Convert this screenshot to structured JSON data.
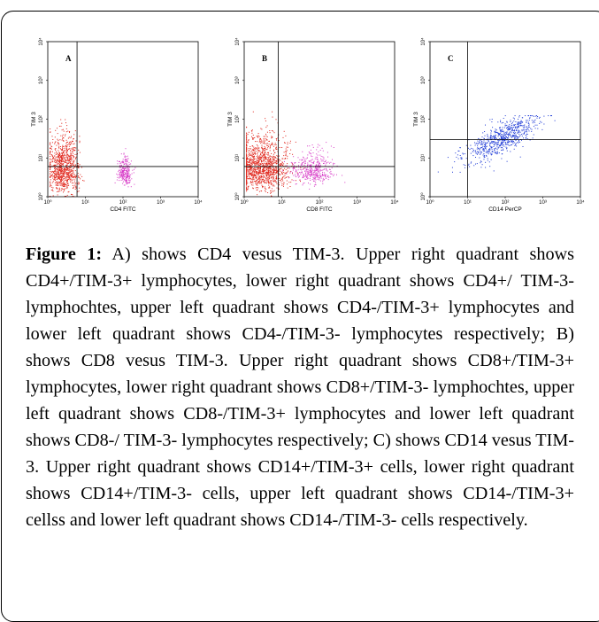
{
  "figure": {
    "caption_label": "Figure 1:",
    "caption_text": " A) shows CD4 vesus TIM-3. Upper right quadrant shows CD4+/TIM-3+ lymphocytes, lower right quadrant shows CD4+/ TIM-3- lymphochtes, upper left quadrant shows CD4-/TIM-3+ lymphocytes and lower left quadrant shows CD4-/TIM-3- lymphocytes respectively; B) shows CD8 vesus TIM-3. Upper right quadrant shows CD8+/TIM-3+ lymphocytes, lower right quadrant shows CD8+/TIM-3- lymphochtes, upper left quadrant shows CD8-/TIM-3+ lymphocytes and lower left quadrant shows CD8-/ TIM-3- lymphocytes respectively; C) shows CD14 vesus TIM-3. Upper right quadrant shows CD14+/TIM-3+ cells, lower right quadrant shows CD14+/TIM-3- cells, upper left quadrant shows CD14-/TIM-3+ cellss and lower left quadrant shows CD14-/TIM-3- cells respectively."
  },
  "chart_data": [
    {
      "type": "scatter",
      "panel_label": "A",
      "xlabel": "CD4 FITC",
      "ylabel": "TIM 3",
      "scale": "log",
      "xlim": [
        1,
        10000
      ],
      "ylim": [
        1,
        10000
      ],
      "x_ticks": [
        "10⁰",
        "10¹",
        "10²",
        "10³",
        "10⁴"
      ],
      "y_ticks": [
        "10⁰",
        "10¹",
        "10²",
        "10³",
        "10⁴"
      ],
      "quadrant_gate": {
        "x": 6,
        "y": 6
      },
      "populations": [
        {
          "color": "#e0261c",
          "count": 900,
          "log_x_mean": 0.4,
          "log_x_sd": 0.2,
          "log_y_mean": 0.5,
          "log_y_sd": 0.55,
          "log_y_range": [
            0,
            2.0
          ]
        },
        {
          "color": "#d83ec8",
          "count": 260,
          "log_x_mean": 2.05,
          "log_x_sd": 0.1,
          "log_y_mean": 0.5,
          "log_y_sd": 0.28,
          "log_y_range": [
            0,
            1.3
          ]
        }
      ]
    },
    {
      "type": "scatter",
      "panel_label": "B",
      "xlabel": "CD8 FITC",
      "ylabel": "TIM 3",
      "scale": "log",
      "xlim": [
        1,
        10000
      ],
      "ylim": [
        1,
        10000
      ],
      "x_ticks": [
        "10⁰",
        "10¹",
        "10²",
        "10³",
        "10⁴"
      ],
      "y_ticks": [
        "10⁰",
        "10¹",
        "10²",
        "10³",
        "10⁴"
      ],
      "quadrant_gate": {
        "x": 8,
        "y": 6
      },
      "populations": [
        {
          "color": "#e0261c",
          "count": 1300,
          "log_x_mean": 0.45,
          "log_x_sd": 0.35,
          "log_y_mean": 0.55,
          "log_y_sd": 0.5,
          "log_y_range": [
            0,
            2.2
          ]
        },
        {
          "color": "#d83ec8",
          "count": 420,
          "log_x_mean": 1.8,
          "log_x_sd": 0.3,
          "log_y_mean": 0.55,
          "log_y_sd": 0.3,
          "log_y_range": [
            0,
            1.5
          ]
        }
      ]
    },
    {
      "type": "scatter",
      "panel_label": "C",
      "xlabel": "CD14 PerCP",
      "ylabel": "TIM 3",
      "scale": "log",
      "xlim": [
        1,
        10000
      ],
      "ylim": [
        1,
        10000
      ],
      "x_ticks": [
        "10⁰",
        "10¹",
        "10²",
        "10³",
        "10⁴"
      ],
      "y_ticks": [
        "10⁰",
        "10¹",
        "10²",
        "10³",
        "10⁴"
      ],
      "quadrant_gate": {
        "x": 10,
        "y": 30
      },
      "populations": [
        {
          "color": "#1f3bd6",
          "count": 700,
          "log_x_mean": 1.9,
          "log_x_sd": 0.5,
          "log_y_mean": 1.5,
          "log_y_sd": 0.35,
          "log_y_range": [
            0.4,
            2.1
          ],
          "trend": 0.45
        }
      ]
    }
  ]
}
